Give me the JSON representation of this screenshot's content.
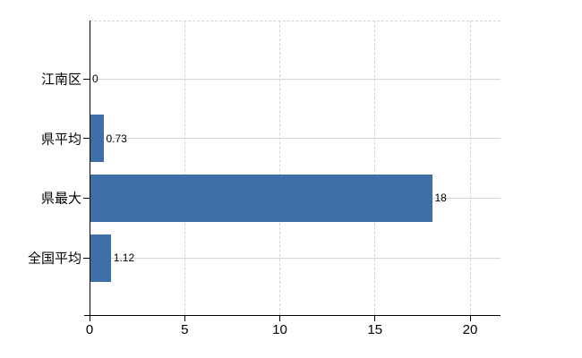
{
  "chart_data": {
    "type": "bar",
    "orientation": "horizontal",
    "categories": [
      "江南区",
      "県平均",
      "県最大",
      "全国平均"
    ],
    "values": [
      0,
      0.73,
      18,
      1.12
    ],
    "value_labels": [
      "0",
      "0.73",
      "18",
      "1.12"
    ],
    "x_ticks": [
      0,
      5,
      10,
      15,
      20
    ],
    "x_tick_labels": [
      "0",
      "5",
      "10",
      "15",
      "20"
    ],
    "xlim": [
      0,
      21.6
    ],
    "title": "",
    "xlabel": "",
    "ylabel": "",
    "legend": "none",
    "grid": {
      "vertical": "dashed",
      "horizontal": "solid",
      "top_border": "dashed"
    },
    "colors": {
      "bar": "#3e6fa9",
      "grid_horizontal": "#d2d9d2",
      "grid_vertical": "#d9d0d9",
      "axis": "#000000",
      "text": "#000000",
      "background": "#ffffff"
    }
  }
}
